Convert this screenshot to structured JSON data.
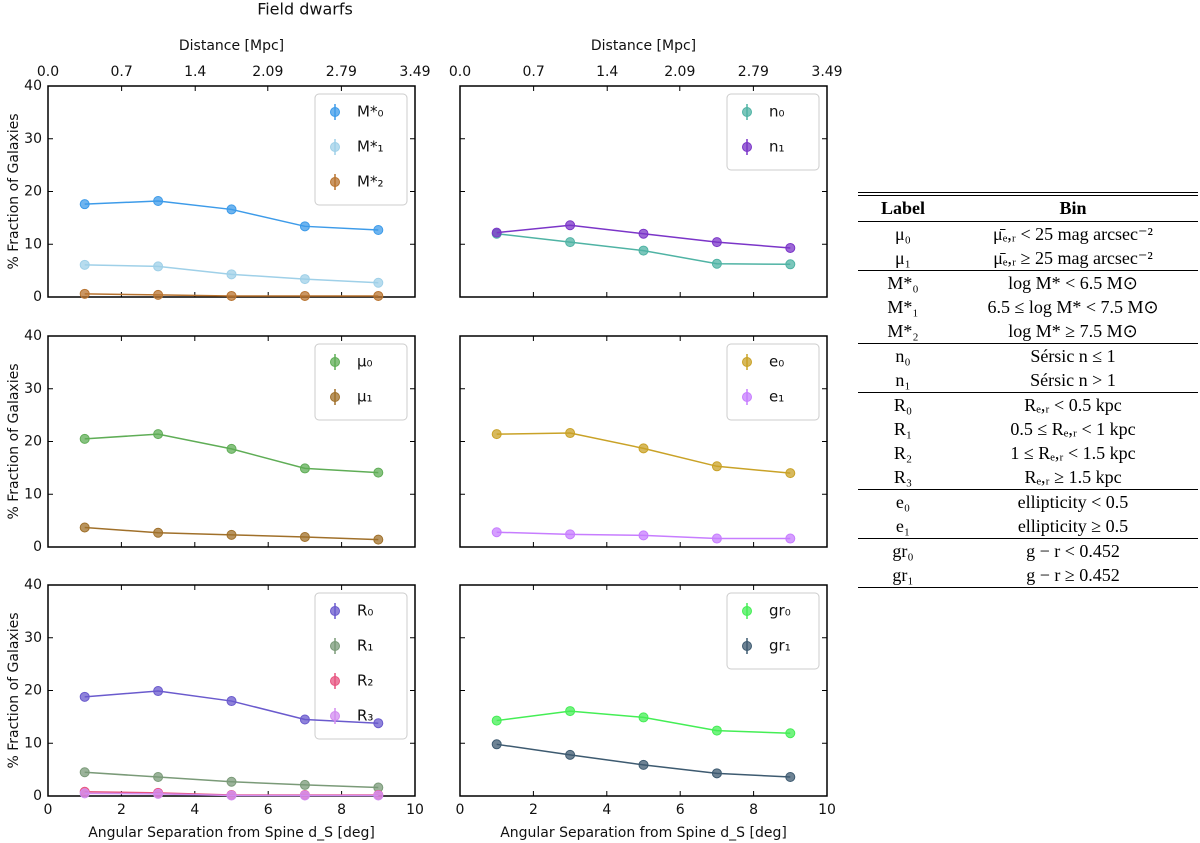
{
  "title": "Field dwarfs",
  "chart_data": [
    {
      "type": "line",
      "x": [
        1,
        3,
        5,
        7,
        9
      ],
      "xlim": [
        0,
        10
      ],
      "ylim": [
        0,
        40
      ],
      "yticks": [
        0,
        10,
        20,
        30,
        40
      ],
      "ylabel": "% Fraction of Galaxies",
      "x2label": "Distance [Mpc]",
      "x2lim": [
        0,
        3.49
      ],
      "x2ticks": [
        {
          "value": 0,
          "label": "0.0"
        },
        0.7,
        1.4,
        2.09,
        2.79,
        3.49
      ],
      "series": [
        {
          "name": "M*₀",
          "color": "#3d9be9",
          "values": [
            17.6,
            18.2,
            16.6,
            13.4,
            12.7
          ]
        },
        {
          "name": "M*₁",
          "color": "#9fd0e8",
          "values": [
            6.1,
            5.8,
            4.3,
            3.4,
            2.7
          ]
        },
        {
          "name": "M*₂",
          "color": "#b8732f",
          "values": [
            0.6,
            0.4,
            0.2,
            0.2,
            0.2
          ]
        }
      ]
    },
    {
      "type": "line",
      "x": [
        1,
        3,
        5,
        7,
        9
      ],
      "xlim": [
        0,
        10
      ],
      "ylim": [
        0,
        40
      ],
      "x2label": "Distance [Mpc]",
      "x2lim": [
        0,
        3.49
      ],
      "x2ticks": [
        {
          "value": 0,
          "label": "0.0"
        },
        0.7,
        1.4,
        2.09,
        2.79,
        3.49
      ],
      "series": [
        {
          "name": "n₀",
          "color": "#4fb3a4",
          "values": [
            12.0,
            10.4,
            8.8,
            6.3,
            6.2
          ]
        },
        {
          "name": "n₁",
          "color": "#7b35c8",
          "values": [
            12.2,
            13.6,
            12.0,
            10.4,
            9.3
          ]
        }
      ]
    },
    {
      "type": "line",
      "x": [
        1,
        3,
        5,
        7,
        9
      ],
      "xlim": [
        0,
        10
      ],
      "ylim": [
        0,
        40
      ],
      "yticks": [
        0,
        10,
        20,
        30,
        40
      ],
      "ylabel": "% Fraction of Galaxies",
      "series": [
        {
          "name": "μ₀",
          "color": "#5fad56",
          "values": [
            20.5,
            21.4,
            18.6,
            14.9,
            14.1
          ]
        },
        {
          "name": "μ₁",
          "color": "#a0702a",
          "values": [
            3.7,
            2.7,
            2.3,
            1.9,
            1.4
          ]
        }
      ]
    },
    {
      "type": "line",
      "x": [
        1,
        3,
        5,
        7,
        9
      ],
      "xlim": [
        0,
        10
      ],
      "ylim": [
        0,
        40
      ],
      "series": [
        {
          "name": "e₀",
          "color": "#c9a227",
          "values": [
            21.4,
            21.6,
            18.7,
            15.3,
            14.0
          ]
        },
        {
          "name": "e₁",
          "color": "#c77dff",
          "values": [
            2.8,
            2.4,
            2.2,
            1.6,
            1.6
          ]
        }
      ]
    },
    {
      "type": "line",
      "x": [
        1,
        3,
        5,
        7,
        9
      ],
      "xlim": [
        0,
        10
      ],
      "ylim": [
        0,
        40
      ],
      "yticks": [
        0,
        10,
        20,
        30,
        40
      ],
      "xticks": [
        0,
        2,
        4,
        6,
        8,
        10
      ],
      "ylabel": "% Fraction of Galaxies",
      "xlabel": "Angular Separation from Spine d_S [deg]",
      "series": [
        {
          "name": "R₀",
          "color": "#6a5acd",
          "values": [
            18.8,
            19.9,
            18.0,
            14.5,
            13.8
          ]
        },
        {
          "name": "R₁",
          "color": "#7a9a78",
          "values": [
            4.5,
            3.6,
            2.7,
            2.1,
            1.6
          ]
        },
        {
          "name": "R₂",
          "color": "#e75480",
          "values": [
            0.8,
            0.6,
            0.2,
            0.2,
            0.2
          ]
        },
        {
          "name": "R₃",
          "color": "#d28cf0",
          "values": [
            0.5,
            0.4,
            0.1,
            0.1,
            0.1
          ]
        }
      ]
    },
    {
      "type": "line",
      "x": [
        1,
        3,
        5,
        7,
        9
      ],
      "xlim": [
        0,
        10
      ],
      "ylim": [
        0,
        40
      ],
      "xticks": [
        0,
        2,
        4,
        6,
        8,
        10
      ],
      "xlabel": "Angular Separation from Spine d_S [deg]",
      "series": [
        {
          "name": "gr₀",
          "color": "#44ee55",
          "values": [
            14.3,
            16.1,
            14.9,
            12.4,
            11.9
          ]
        },
        {
          "name": "gr₁",
          "color": "#3d5a70",
          "values": [
            9.8,
            7.8,
            5.9,
            4.3,
            3.6
          ]
        }
      ]
    }
  ],
  "table": {
    "header": [
      "Label",
      "Bin"
    ],
    "groups": [
      [
        [
          "μ₀",
          "μ̄ₑ,ᵣ < 25 mag arcsec⁻²"
        ],
        [
          "μ₁",
          "μ̄ₑ,ᵣ ≥ 25 mag arcsec⁻²"
        ]
      ],
      [
        [
          "M*₀",
          "log M* < 6.5 M⊙"
        ],
        [
          "M*₁",
          "6.5 ≤ log M* < 7.5 M⊙"
        ],
        [
          "M*₂",
          "log M* ≥ 7.5 M⊙"
        ]
      ],
      [
        [
          "n₀",
          "Sérsic n ≤ 1"
        ],
        [
          "n₁",
          "Sérsic n > 1"
        ]
      ],
      [
        [
          "R₀",
          "Rₑ,ᵣ < 0.5 kpc"
        ],
        [
          "R₁",
          "0.5 ≤ Rₑ,ᵣ < 1 kpc"
        ],
        [
          "R₂",
          "1 ≤ Rₑ,ᵣ < 1.5 kpc"
        ],
        [
          "R₃",
          "Rₑ,ᵣ ≥ 1.5 kpc"
        ]
      ],
      [
        [
          "e₀",
          "ellipticity < 0.5"
        ],
        [
          "e₁",
          "ellipticity ≥ 0.5"
        ]
      ],
      [
        [
          "gr₀",
          "g − r < 0.452"
        ],
        [
          "gr₁",
          "g − r ≥ 0.452"
        ]
      ]
    ]
  }
}
